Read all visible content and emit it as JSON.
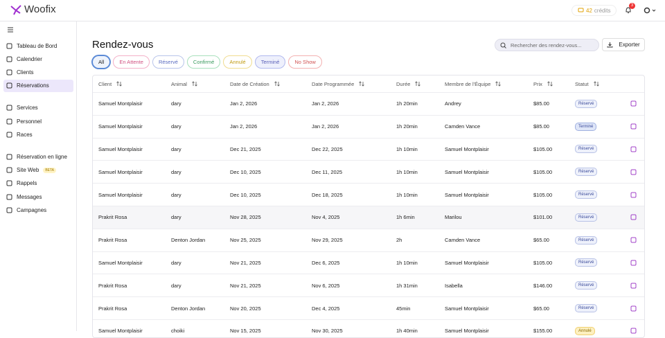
{
  "header": {
    "logo": "Woofix",
    "credits_count": "42",
    "credits_label": "crédits",
    "notifications": "3"
  },
  "sidebar": {
    "groups": [
      [
        {
          "label": "Tableau de Bord"
        },
        {
          "label": "Calendrier"
        },
        {
          "label": "Clients"
        },
        {
          "label": "Réservations",
          "active": true
        }
      ],
      [
        {
          "label": "Services"
        },
        {
          "label": "Personnel"
        },
        {
          "label": "Races"
        }
      ],
      [
        {
          "label": "Réservation en ligne"
        },
        {
          "label": "Site Web",
          "badge": "BETA"
        },
        {
          "label": "Rappels"
        },
        {
          "label": "Messages"
        },
        {
          "label": "Campagnes"
        }
      ]
    ]
  },
  "main": {
    "title": "Rendez-vous",
    "search_placeholder": "Rechercher des rendez-vous...",
    "export": "Exporter",
    "filters": [
      {
        "label": "All",
        "active": true
      },
      {
        "label": "En Attente"
      },
      {
        "label": "Réservé"
      },
      {
        "label": "Confirmé"
      },
      {
        "label": "Annulé"
      },
      {
        "label": "Terminé"
      },
      {
        "label": "No Show"
      }
    ],
    "table": {
      "headers": [
        "Client",
        "Animal",
        "Date de Création",
        "Date Programmée",
        "Durée",
        "Membre de l'Équipe",
        "Prix",
        "Statut"
      ],
      "rows": [
        [
          "Samuel Montplaisir",
          "dary",
          "Jan 2, 2026",
          "Jan 2, 2026",
          "1h 20min",
          "Andrey",
          "$85.00",
          "Réservé"
        ],
        [
          "Samuel Montplaisir",
          "dary",
          "Jan 2, 2026",
          "Jan 2, 2026",
          "1h 20min",
          "Camden Vance",
          "$85.00",
          "Terminé"
        ],
        [
          "Samuel Montplaisir",
          "dary",
          "Dec 21, 2025",
          "Dec 22, 2025",
          "1h 10min",
          "Samuel Montplaisir",
          "$105.00",
          "Réservé"
        ],
        [
          "Samuel Montplaisir",
          "dary",
          "Dec 10, 2025",
          "Dec 11, 2025",
          "1h 10min",
          "Samuel Montplaisir",
          "$105.00",
          "Réservé"
        ],
        [
          "Samuel Montplaisir",
          "dary",
          "Dec 10, 2025",
          "Dec 18, 2025",
          "1h 10min",
          "Samuel Montplaisir",
          "$105.00",
          "Réservé"
        ],
        [
          "Prakrit Rosa",
          "dary",
          "Nov 28, 2025",
          "Nov 4, 2025",
          "1h 6min",
          "Marilou",
          "$101.00",
          "Réservé"
        ],
        [
          "Prakrit Rosa",
          "Denton Jordan",
          "Nov 25, 2025",
          "Nov 29, 2025",
          "2h",
          "Camden Vance",
          "$65.00",
          "Réservé"
        ],
        [
          "Samuel Montplaisir",
          "dary",
          "Nov 21, 2025",
          "Dec 6, 2025",
          "1h 10min",
          "Samuel Montplaisir",
          "$105.00",
          "Réservé"
        ],
        [
          "Prakrit Rosa",
          "dary",
          "Nov 21, 2025",
          "Nov 6, 2025",
          "1h 31min",
          "Isabella",
          "$146.00",
          "Réservé"
        ],
        [
          "Prakrit Rosa",
          "Denton Jordan",
          "Nov 20, 2025",
          "Dec 4, 2025",
          "45min",
          "Samuel Montplaisir",
          "$65.00",
          "Réservé"
        ],
        [
          "Samuel Montplaisir",
          "choiki",
          "Nov 15, 2025",
          "Nov 30, 2025",
          "1h 40min",
          "Samuel Montplaisir",
          "$155.00",
          "Annulé"
        ]
      ]
    }
  }
}
